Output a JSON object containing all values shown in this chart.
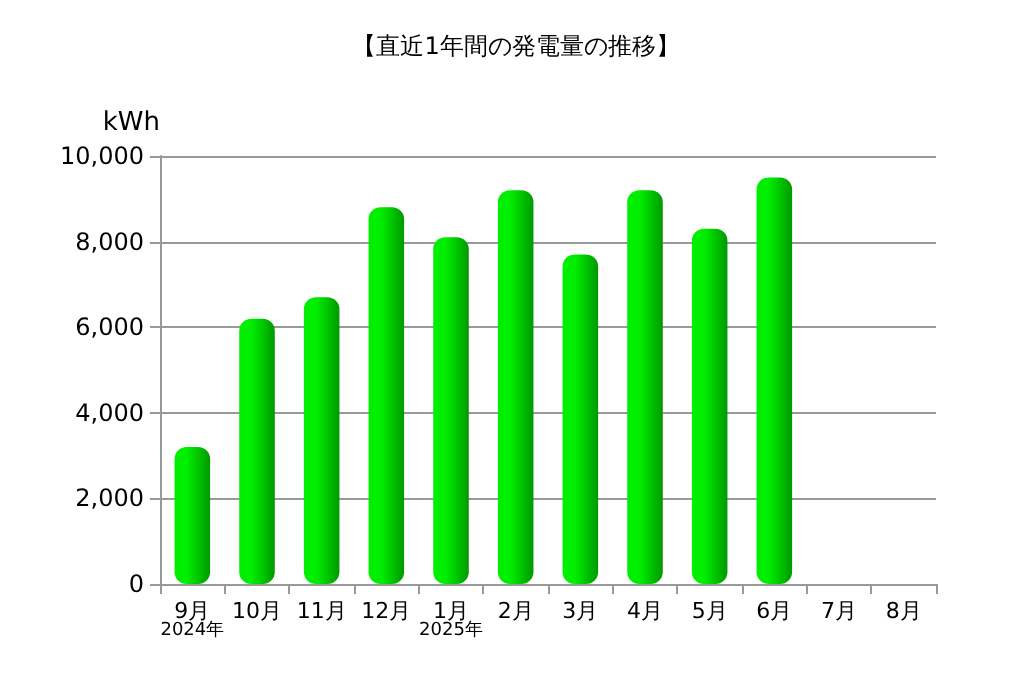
{
  "chart_data": {
    "type": "bar",
    "title": "【直近1年間の発電量の推移】",
    "ylabel": "kWh",
    "categories": [
      "9月\n2024年",
      "10月",
      "11月",
      "12月",
      "1月\n2025年",
      "2月",
      "3月",
      "4月",
      "5月",
      "6月",
      "7月",
      "8月"
    ],
    "values": [
      3200,
      6200,
      6700,
      8800,
      8100,
      9200,
      7700,
      9200,
      8300,
      9500,
      null,
      null
    ],
    "color": "#00ee00",
    "ylim": [
      0,
      10000
    ],
    "yticks": [
      0,
      {
        "value": 2000,
        "label": "2,000"
      },
      {
        "value": 4000,
        "label": "4,000"
      },
      {
        "value": 6000,
        "label": "6,000"
      },
      {
        "value": 8000,
        "label": "8,000"
      },
      {
        "value": 10000,
        "label": "10,000"
      }
    ],
    "grid": "y"
  }
}
